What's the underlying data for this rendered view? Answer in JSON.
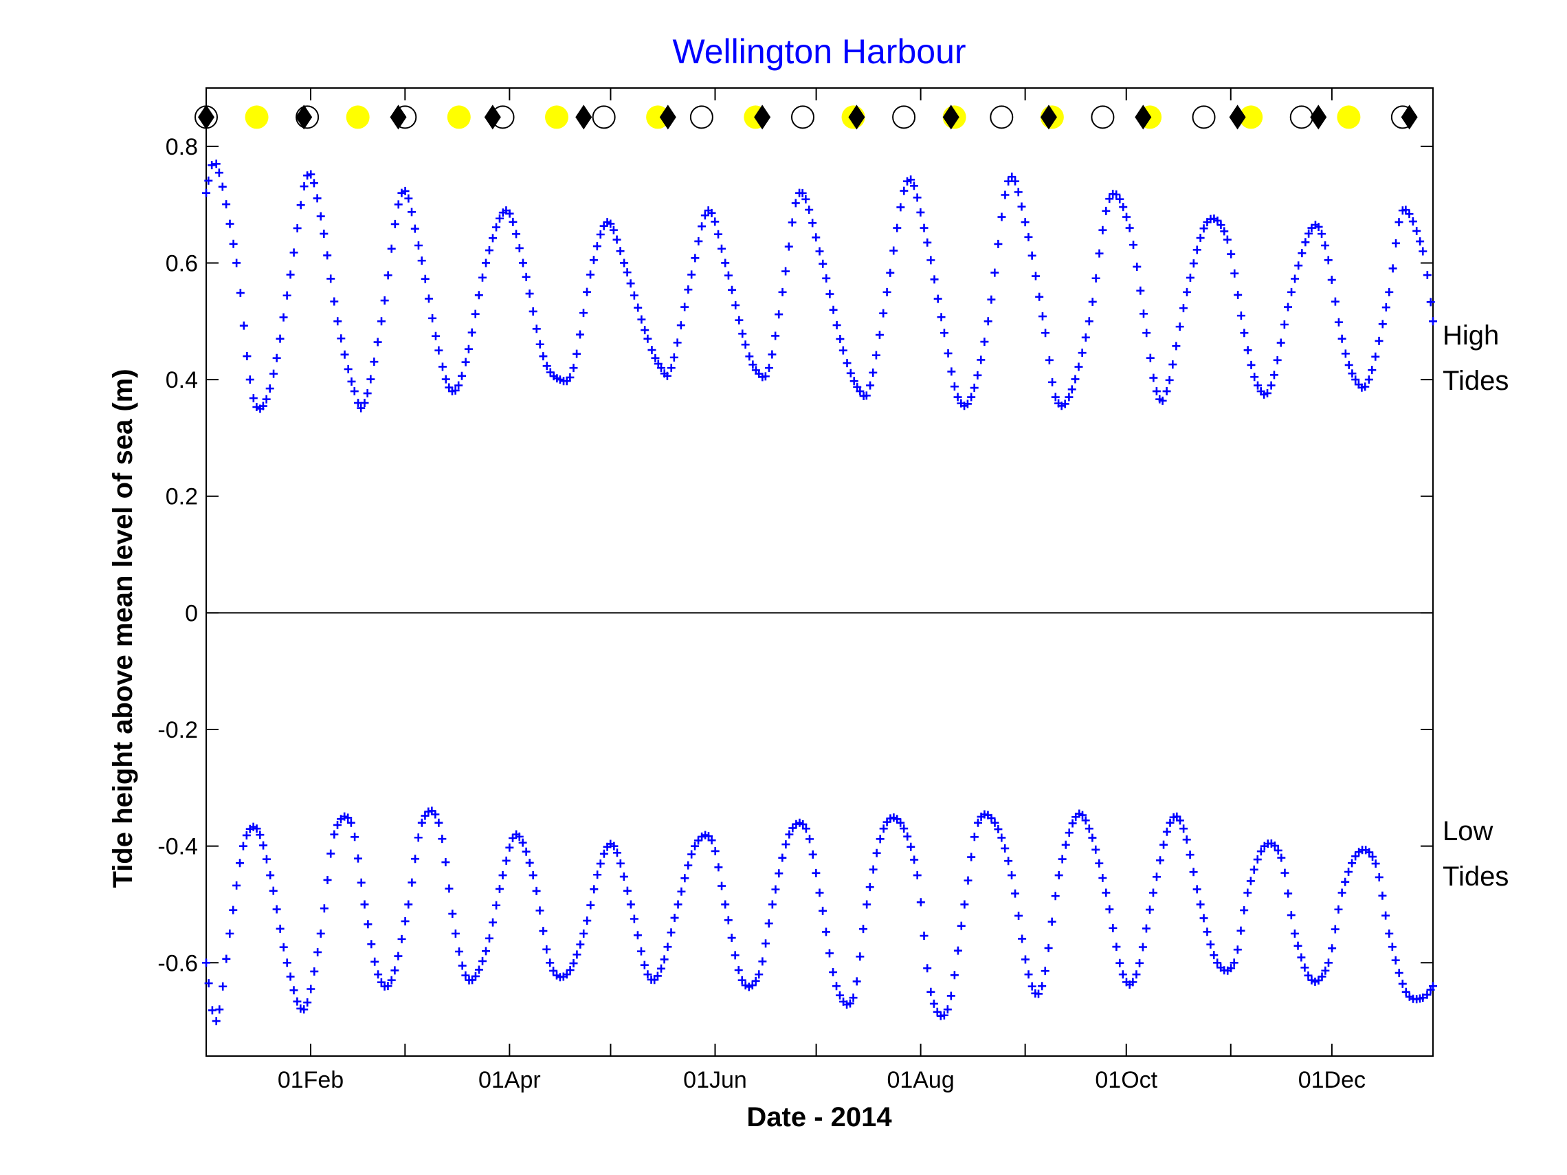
{
  "chart_data": {
    "type": "scatter",
    "title": "Wellington Harbour",
    "xlabel": "Date - 2014",
    "ylabel": "Tide height above mean level of sea (m)",
    "x_range": [
      "2014-01-01",
      "2014-12-31"
    ],
    "ylim": [
      -0.76,
      0.9
    ],
    "yticks": [
      -0.6,
      -0.4,
      -0.2,
      0,
      0.2,
      0.4,
      0.6,
      0.8
    ],
    "ytick_labels": [
      "-0.6",
      "-0.4",
      "-0.2",
      "0",
      "0.2",
      "0.4",
      "0.6",
      "0.8"
    ],
    "xticks": [
      "2014-02-01",
      "2014-04-01",
      "2014-06-01",
      "2014-08-01",
      "2014-10-01",
      "2014-12-01"
    ],
    "xtick_labels": [
      "01Feb",
      "01Apr",
      "01Jun",
      "01Aug",
      "01Oct",
      "01Dec"
    ],
    "minor_xticks": [
      "2014-03-01",
      "2014-05-01",
      "2014-07-01",
      "2014-09-01",
      "2014-11-01"
    ],
    "grid": false,
    "zero_line": true,
    "right_labels": [
      {
        "lines": [
          "High",
          "Tides"
        ],
        "y": 0.42
      },
      {
        "lines": [
          "Low",
          "Tides"
        ],
        "y": -0.43
      }
    ],
    "colors": {
      "title": "#0000ff",
      "tide_markers": "#0000ff",
      "full_moon": "#ffff00",
      "perigee": "#000000",
      "new_moon_outline": "#000000"
    },
    "events_y": 0.85,
    "full_moon_dates": [
      "2014-01-16",
      "2014-02-15",
      "2014-03-17",
      "2014-04-15",
      "2014-05-15",
      "2014-06-13",
      "2014-07-12",
      "2014-08-11",
      "2014-09-09",
      "2014-10-08",
      "2014-11-07",
      "2014-12-06"
    ],
    "new_moon_dates": [
      "2014-01-01",
      "2014-01-31",
      "2014-03-01",
      "2014-03-30",
      "2014-04-29",
      "2014-05-28",
      "2014-06-27",
      "2014-07-27",
      "2014-08-25",
      "2014-09-24",
      "2014-10-24",
      "2014-11-22",
      "2014-12-22"
    ],
    "perigee_dates": [
      "2014-01-01",
      "2014-01-30",
      "2014-02-27",
      "2014-03-27",
      "2014-04-23",
      "2014-05-18",
      "2014-06-15",
      "2014-07-13",
      "2014-08-10",
      "2014-09-08",
      "2014-10-06",
      "2014-11-03",
      "2014-11-27",
      "2014-12-24"
    ],
    "series": [
      {
        "label_group": "High Tides",
        "x": [
          "2014-01-01",
          "2014-01-04",
          "2014-01-10",
          "2014-01-14",
          "2014-01-17",
          "2014-01-21",
          "2014-01-26",
          "2014-01-31",
          "2014-02-04",
          "2014-02-09",
          "2014-02-14",
          "2014-02-17",
          "2014-02-22",
          "2014-02-28",
          "2014-03-05",
          "2014-03-11",
          "2014-03-15",
          "2014-03-19",
          "2014-03-25",
          "2014-03-31",
          "2014-04-05",
          "2014-04-11",
          "2014-04-16",
          "2014-04-20",
          "2014-04-25",
          "2014-04-30",
          "2014-05-05",
          "2014-05-12",
          "2014-05-16",
          "2014-05-19",
          "2014-05-25",
          "2014-05-30",
          "2014-06-04",
          "2014-06-10",
          "2014-06-14",
          "2014-06-17",
          "2014-06-21",
          "2014-06-26",
          "2014-07-02",
          "2014-07-09",
          "2014-07-14",
          "2014-07-17",
          "2014-07-22",
          "2014-07-28",
          "2014-08-02",
          "2014-08-08",
          "2014-08-12",
          "2014-08-16",
          "2014-08-21",
          "2014-08-27",
          "2014-09-01",
          "2014-09-07",
          "2014-09-10",
          "2014-09-14",
          "2014-09-20",
          "2014-09-26",
          "2014-10-02",
          "2014-10-07",
          "2014-10-10",
          "2014-10-13",
          "2014-10-19",
          "2014-10-25",
          "2014-10-31",
          "2014-11-05",
          "2014-11-09",
          "2014-11-13",
          "2014-11-19",
          "2014-11-25",
          "2014-11-29",
          "2014-12-04",
          "2014-12-08",
          "2014-12-12",
          "2014-12-18",
          "2014-12-22",
          "2014-12-28",
          "2014-12-31"
        ],
        "y": [
          0.72,
          0.77,
          0.6,
          0.4,
          0.35,
          0.41,
          0.58,
          0.75,
          0.68,
          0.5,
          0.38,
          0.36,
          0.5,
          0.72,
          0.63,
          0.45,
          0.38,
          0.43,
          0.6,
          0.69,
          0.6,
          0.44,
          0.4,
          0.42,
          0.58,
          0.67,
          0.6,
          0.47,
          0.42,
          0.42,
          0.58,
          0.69,
          0.6,
          0.46,
          0.41,
          0.42,
          0.55,
          0.72,
          0.62,
          0.45,
          0.38,
          0.39,
          0.55,
          0.74,
          0.66,
          0.48,
          0.37,
          0.37,
          0.5,
          0.74,
          0.67,
          0.48,
          0.37,
          0.37,
          0.5,
          0.71,
          0.66,
          0.48,
          0.38,
          0.38,
          0.55,
          0.67,
          0.64,
          0.48,
          0.39,
          0.39,
          0.55,
          0.66,
          0.63,
          0.47,
          0.4,
          0.4,
          0.55,
          0.69,
          0.62,
          0.5
        ]
      },
      {
        "label_group": "Low Tides",
        "x": [
          "2014-01-01",
          "2014-01-04",
          "2014-01-08",
          "2014-01-12",
          "2014-01-16",
          "2014-01-20",
          "2014-01-25",
          "2014-01-30",
          "2014-02-04",
          "2014-02-08",
          "2014-02-13",
          "2014-02-17",
          "2014-02-21",
          "2014-02-25",
          "2014-03-02",
          "2014-03-06",
          "2014-03-11",
          "2014-03-16",
          "2014-03-20",
          "2014-03-25",
          "2014-03-30",
          "2014-04-03",
          "2014-04-08",
          "2014-04-13",
          "2014-04-18",
          "2014-04-23",
          "2014-04-28",
          "2014-05-02",
          "2014-05-07",
          "2014-05-12",
          "2014-05-16",
          "2014-05-21",
          "2014-05-26",
          "2014-05-31",
          "2014-06-04",
          "2014-06-09",
          "2014-06-14",
          "2014-06-18",
          "2014-06-23",
          "2014-06-28",
          "2014-07-02",
          "2014-07-07",
          "2014-07-12",
          "2014-07-16",
          "2014-07-21",
          "2014-07-26",
          "2014-07-31",
          "2014-08-04",
          "2014-08-09",
          "2014-08-14",
          "2014-08-18",
          "2014-08-23",
          "2014-08-28",
          "2014-09-02",
          "2014-09-06",
          "2014-09-11",
          "2014-09-16",
          "2014-09-20",
          "2014-09-25",
          "2014-09-30",
          "2014-10-04",
          "2014-10-09",
          "2014-10-14",
          "2014-10-18",
          "2014-10-23",
          "2014-10-28",
          "2014-11-02",
          "2014-11-06",
          "2014-11-11",
          "2014-11-16",
          "2014-11-20",
          "2014-11-25",
          "2014-11-30",
          "2014-12-04",
          "2014-12-09",
          "2014-12-14",
          "2014-12-18",
          "2014-12-23",
          "2014-12-28",
          "2014-12-31"
        ],
        "y": [
          -0.6,
          -0.7,
          -0.55,
          -0.4,
          -0.37,
          -0.45,
          -0.6,
          -0.68,
          -0.55,
          -0.38,
          -0.36,
          -0.5,
          -0.62,
          -0.63,
          -0.5,
          -0.36,
          -0.36,
          -0.55,
          -0.63,
          -0.58,
          -0.45,
          -0.38,
          -0.45,
          -0.6,
          -0.62,
          -0.55,
          -0.43,
          -0.4,
          -0.5,
          -0.62,
          -0.61,
          -0.5,
          -0.4,
          -0.39,
          -0.5,
          -0.63,
          -0.62,
          -0.5,
          -0.38,
          -0.37,
          -0.48,
          -0.64,
          -0.66,
          -0.5,
          -0.37,
          -0.36,
          -0.45,
          -0.65,
          -0.68,
          -0.5,
          -0.36,
          -0.36,
          -0.45,
          -0.62,
          -0.64,
          -0.45,
          -0.35,
          -0.37,
          -0.48,
          -0.62,
          -0.62,
          -0.48,
          -0.36,
          -0.37,
          -0.5,
          -0.6,
          -0.6,
          -0.48,
          -0.4,
          -0.42,
          -0.55,
          -0.63,
          -0.6,
          -0.48,
          -0.41,
          -0.43,
          -0.55,
          -0.65,
          -0.66,
          -0.64
        ]
      }
    ]
  }
}
